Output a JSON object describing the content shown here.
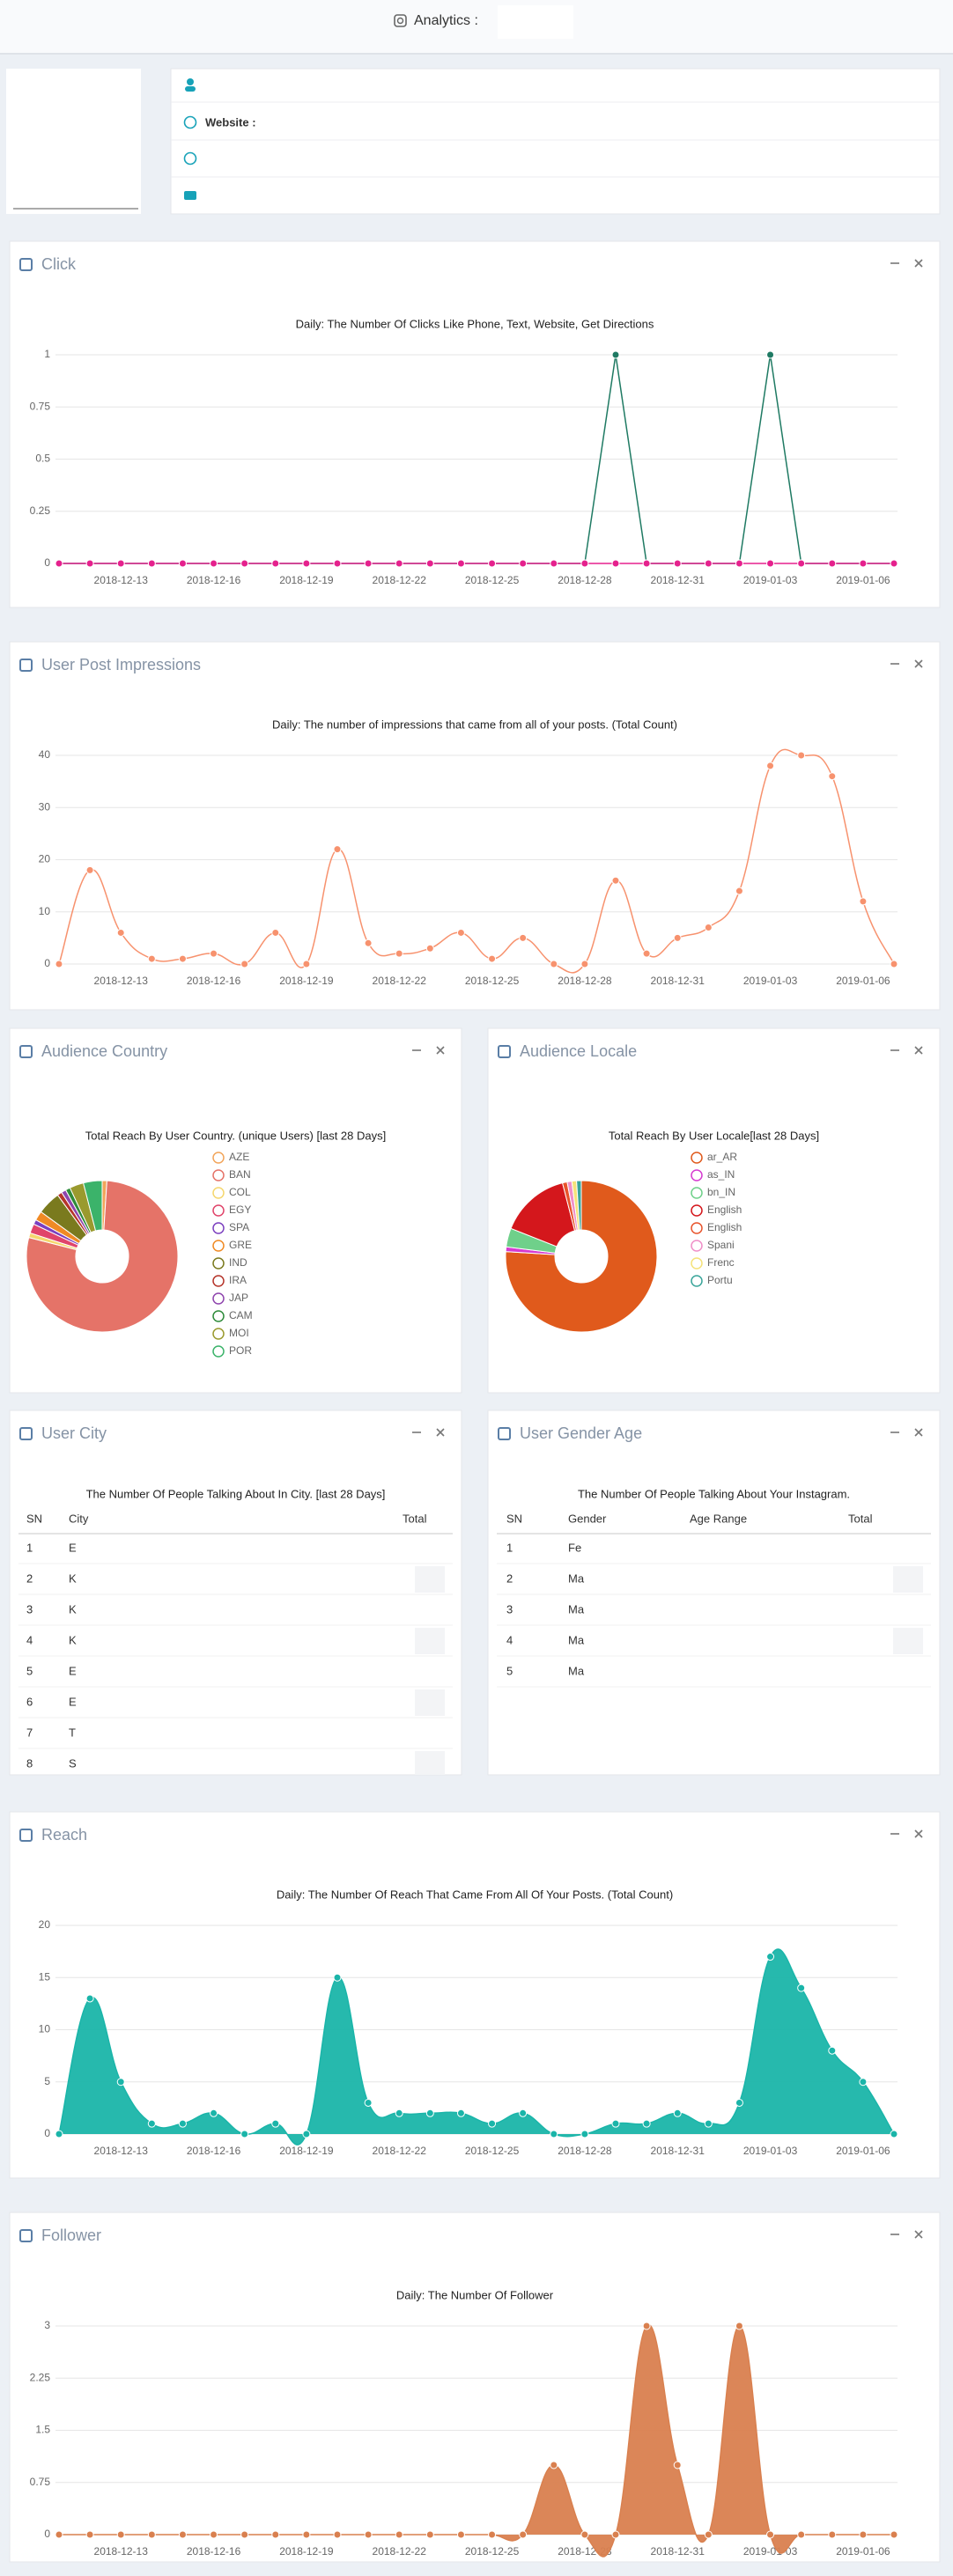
{
  "header": {
    "title": "Analytics :"
  },
  "profile": {
    "website_label": "Website :"
  },
  "chart_data": [
    {
      "type": "line",
      "panel_title": "Click",
      "subtitle": "Daily: The Number Of Clicks Like Phone, Text, Website, Get Directions",
      "categories": [
        null,
        null,
        "2018-12-13",
        null,
        null,
        "2018-12-16",
        null,
        null,
        "2018-12-19",
        null,
        null,
        "2018-12-22",
        null,
        null,
        "2018-12-25",
        null,
        null,
        "2018-12-28",
        null,
        null,
        "2018-12-31",
        null,
        null,
        "2019-01-03",
        null,
        null,
        "2019-01-06",
        null
      ],
      "series": [
        {
          "color": "#1f7a63",
          "values": [
            0,
            0,
            0,
            0,
            0,
            0,
            0,
            0,
            0,
            0,
            0,
            0,
            0,
            0,
            0,
            0,
            0,
            0,
            1,
            0,
            0,
            0,
            0,
            1,
            0,
            0,
            0,
            0
          ]
        },
        {
          "color": "#e5218d",
          "values": [
            0,
            0,
            0,
            0,
            0,
            0,
            0,
            0,
            0,
            0,
            0,
            0,
            0,
            0,
            0,
            0,
            0,
            0,
            0,
            0,
            0,
            0,
            0,
            0,
            0,
            0,
            0,
            0
          ]
        }
      ],
      "ylim": [
        0,
        1
      ],
      "yticks": [
        0,
        0.25,
        0.5,
        0.75,
        1
      ],
      "grid": true
    },
    {
      "type": "line",
      "smooth": true,
      "panel_title": "User Post Impressions",
      "subtitle": "Daily: The number of impressions that came from all of your posts. (Total Count)",
      "categories": [
        null,
        null,
        "2018-12-13",
        null,
        null,
        "2018-12-16",
        null,
        null,
        "2018-12-19",
        null,
        null,
        "2018-12-22",
        null,
        null,
        "2018-12-25",
        null,
        null,
        "2018-12-28",
        null,
        null,
        "2018-12-31",
        null,
        null,
        "2019-01-03",
        null,
        null,
        "2019-01-06",
        null
      ],
      "series": [
        {
          "color": "#f7926e",
          "values": [
            0,
            18,
            6,
            1,
            1,
            2,
            0,
            6,
            0,
            22,
            4,
            2,
            3,
            6,
            1,
            5,
            0,
            0,
            16,
            2,
            5,
            7,
            14,
            38,
            40,
            36,
            12,
            0
          ]
        }
      ],
      "ylim": [
        0,
        40
      ],
      "yticks": [
        0,
        10,
        20,
        30,
        40
      ],
      "grid": true
    },
    {
      "type": "pie",
      "donut": true,
      "panel_title": "Audience Country",
      "subtitle": "Total Reach By User Country. (unique Users) [last 28 Days]",
      "categories": [
        "AZE",
        "BAN",
        "COL",
        "EGY",
        "SPA",
        "GRE",
        "IND",
        "IRA",
        "JAP",
        "CAM",
        "MOI",
        "POR"
      ],
      "values": [
        1,
        78,
        1,
        2,
        1,
        2,
        5,
        1,
        1,
        1,
        3,
        4
      ],
      "colors": [
        "#f2a55a",
        "#e57368",
        "#f5d76e",
        "#e0446a",
        "#7b3fbf",
        "#f08a24",
        "#7a7a1e",
        "#b5342a",
        "#8e44ad",
        "#2e8b3a",
        "#9a9a2e",
        "#3bb36a"
      ]
    },
    {
      "type": "pie",
      "donut": true,
      "panel_title": "Audience Locale",
      "subtitle": "Total Reach By User Locale[last 28 Days]",
      "categories": [
        "ar_AR",
        "as_IN",
        "bn_IN",
        "English",
        "English",
        "Spani",
        "Frenc",
        "Portu"
      ],
      "values": [
        76,
        1,
        4,
        15,
        1,
        1,
        1,
        1
      ],
      "colors": [
        "#e05a1c",
        "#d63ad0",
        "#6fd08a",
        "#d4171c",
        "#e8532b",
        "#f08fc8",
        "#f5e27a",
        "#3aa59a"
      ]
    },
    {
      "type": "area",
      "smooth": true,
      "panel_title": "Reach",
      "subtitle": "Daily: The Number Of Reach That Came From All Of Your Posts. (Total Count)",
      "categories": [
        null,
        null,
        "2018-12-13",
        null,
        null,
        "2018-12-16",
        null,
        null,
        "2018-12-19",
        null,
        null,
        "2018-12-22",
        null,
        null,
        "2018-12-25",
        null,
        null,
        "2018-12-28",
        null,
        null,
        "2018-12-31",
        null,
        null,
        "2019-01-03",
        null,
        null,
        "2019-01-06",
        null
      ],
      "series": [
        {
          "color": "#1ab5a9",
          "values": [
            0,
            13,
            5,
            1,
            1,
            2,
            0,
            1,
            0,
            15,
            3,
            2,
            2,
            2,
            1,
            2,
            0,
            0,
            1,
            1,
            2,
            1,
            3,
            17,
            14,
            8,
            5,
            0
          ]
        }
      ],
      "ylim": [
        0,
        20
      ],
      "yticks": [
        0,
        5,
        10,
        15,
        20
      ],
      "grid": true
    },
    {
      "type": "area",
      "smooth": true,
      "panel_title": "Follower",
      "subtitle": "Daily: The Number Of Follower",
      "categories": [
        null,
        null,
        "2018-12-13",
        null,
        null,
        "2018-12-16",
        null,
        null,
        "2018-12-19",
        null,
        null,
        "2018-12-22",
        null,
        null,
        "2018-12-25",
        null,
        null,
        "2018-12-28",
        null,
        null,
        "2018-12-31",
        null,
        null,
        "2019-01-03",
        null,
        null,
        "2019-01-06",
        null
      ],
      "series": [
        {
          "color": "#d9804f",
          "values": [
            0,
            0,
            0,
            0,
            0,
            0,
            0,
            0,
            0,
            0,
            0,
            0,
            0,
            0,
            0,
            0,
            1,
            0,
            0,
            3,
            1,
            0,
            3,
            0,
            0,
            0,
            0,
            0
          ]
        }
      ],
      "ylim": [
        0,
        3
      ],
      "yticks": [
        0,
        0.75,
        1.5,
        2.25,
        3
      ],
      "grid": true
    }
  ],
  "tables": [
    {
      "panel_title": "User City",
      "subtitle": "The Number Of People Talking About In City. [last 28 Days]",
      "columns": [
        "SN",
        "City",
        "Total"
      ],
      "rows": [
        [
          1,
          "E"
        ],
        [
          2,
          "K"
        ],
        [
          3,
          "K"
        ],
        [
          4,
          "K"
        ],
        [
          5,
          "E"
        ],
        [
          6,
          "E"
        ],
        [
          7,
          "T"
        ],
        [
          8,
          "S"
        ]
      ]
    },
    {
      "panel_title": "User Gender Age",
      "subtitle": "The Number Of People Talking About Your Instagram.",
      "columns": [
        "SN",
        "Gender",
        "Age Range",
        "Total"
      ],
      "rows": [
        [
          1,
          "Fe"
        ],
        [
          2,
          "Ma"
        ],
        [
          3,
          "Ma"
        ],
        [
          4,
          "Ma"
        ],
        [
          5,
          "Ma"
        ]
      ]
    }
  ]
}
